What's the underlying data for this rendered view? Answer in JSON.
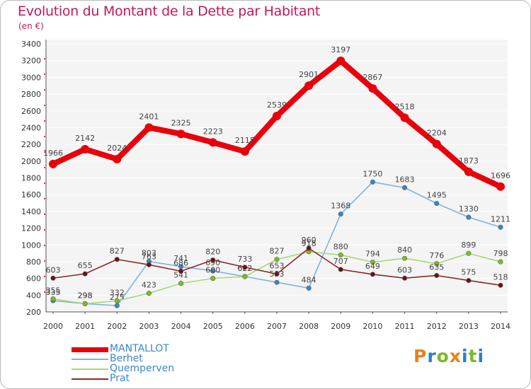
{
  "title": "Evolution du Montant de la Dette par Habitant",
  "subtitle": "(en €)",
  "logo": {
    "text": "Proxiti",
    "colors": [
      "#e8821e",
      "#2e7dc9",
      "#7ab92a",
      "#e8821e",
      "#2e7dc9",
      "#7ab92a",
      "#2e7dc9"
    ]
  },
  "chart_data": {
    "type": "line",
    "x": [
      "2000",
      "2001",
      "2002",
      "2003",
      "2004",
      "2005",
      "2006",
      "2007",
      "2008",
      "2009",
      "2010",
      "2011",
      "2012",
      "2013",
      "2014"
    ],
    "ylim": [
      200,
      3400
    ],
    "yticks": [
      "200",
      "400",
      "600",
      "800",
      "1000",
      "1200",
      "1400",
      "1600",
      "1800",
      "2000",
      "2200",
      "2400",
      "2600",
      "2800",
      "3000",
      "3200",
      "3400"
    ],
    "grid": "horizontal",
    "legend_position": "bottom-left",
    "series": [
      {
        "name": "MANTALLOT",
        "color": "#e8000b",
        "line_color": "#e8000b",
        "labels": [
          "1966",
          "2142",
          "2024",
          "2401",
          "2325",
          "2223",
          "2115",
          "2539",
          "2901",
          "3197",
          "2867",
          "2518",
          "2204",
          "1873",
          "1696"
        ],
        "values": [
          1966,
          2142,
          2024,
          2401,
          2325,
          2223,
          2115,
          2539,
          2901,
          3197,
          2867,
          2518,
          2204,
          1873,
          1696
        ]
      },
      {
        "name": "Berhet",
        "color": "#3a87c8",
        "line_color": "#7fb2dd",
        "labels": [
          "335",
          "298",
          "275",
          "803",
          "741",
          "690",
          "622",
          "553",
          "484",
          "1368",
          "1750",
          "1683",
          "1495",
          "1330",
          "1211"
        ],
        "values": [
          335,
          298,
          275,
          803,
          741,
          690,
          622,
          553,
          484,
          1368,
          1750,
          1683,
          1495,
          1330,
          1211
        ]
      },
      {
        "name": "Quemperven",
        "color": "#7dc11e",
        "line_color": "#a8d878",
        "labels": [
          "355",
          "298",
          "332",
          "423",
          "541",
          "600",
          "622",
          "827",
          "918",
          "880",
          "794",
          "840",
          "776",
          "899",
          "798"
        ],
        "values": [
          355,
          298,
          332,
          423,
          541,
          600,
          622,
          827,
          918,
          880,
          794,
          840,
          776,
          899,
          798
        ]
      },
      {
        "name": "Prat",
        "color": "#6b1212",
        "line_color": "#8a2a2a",
        "labels": [
          "603",
          "655",
          "827",
          "763",
          "686",
          "820",
          "733",
          "653",
          "960",
          "707",
          "649",
          "603",
          "635",
          "575",
          "518"
        ],
        "values": [
          603,
          655,
          827,
          763,
          686,
          820,
          733,
          653,
          960,
          707,
          649,
          603,
          635,
          575,
          518
        ]
      }
    ]
  }
}
